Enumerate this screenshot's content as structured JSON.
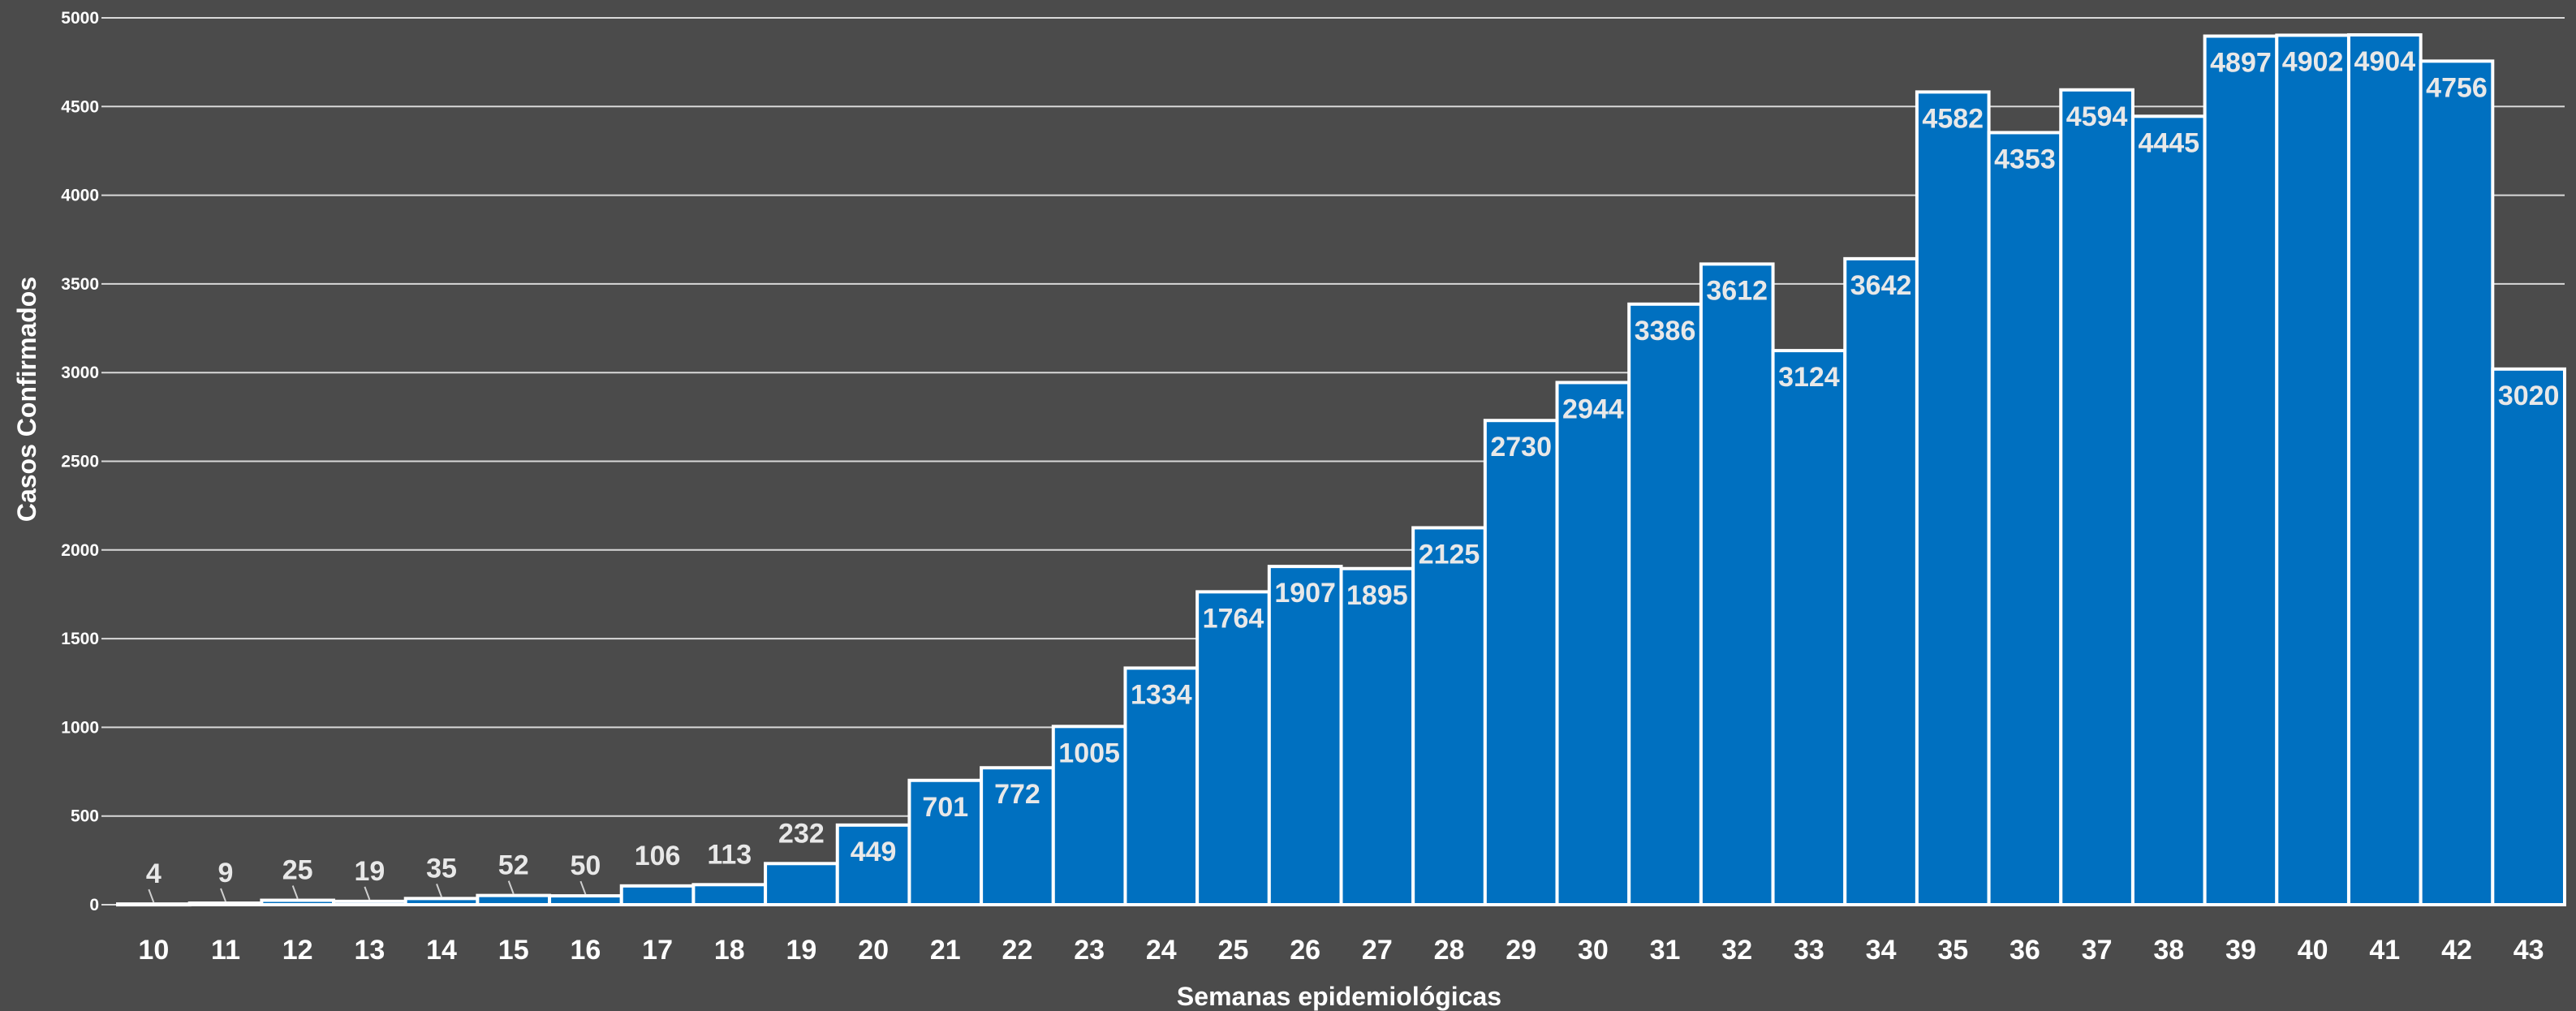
{
  "chart_data": {
    "type": "bar",
    "categories": [
      "10",
      "11",
      "12",
      "13",
      "14",
      "15",
      "16",
      "17",
      "18",
      "19",
      "20",
      "21",
      "22",
      "23",
      "24",
      "25",
      "26",
      "27",
      "28",
      "29",
      "30",
      "31",
      "32",
      "33",
      "34",
      "35",
      "36",
      "37",
      "38",
      "39",
      "40",
      "41",
      "42",
      "43"
    ],
    "values": [
      4,
      9,
      25,
      19,
      35,
      52,
      50,
      106,
      113,
      232,
      449,
      701,
      772,
      1005,
      1334,
      1764,
      1907,
      1895,
      2125,
      2730,
      2944,
      3386,
      3612,
      3124,
      3642,
      4582,
      4353,
      4594,
      4445,
      4897,
      4902,
      4904,
      4756,
      3020
    ],
    "xlabel": "Semanas epidemiológicas",
    "ylabel": "Casos Confirmados",
    "ylim": [
      0,
      5000
    ],
    "yticks": [
      0,
      500,
      1000,
      1500,
      2000,
      2500,
      3000,
      3500,
      4000,
      4500,
      5000
    ],
    "grid": true,
    "colors": {
      "bar": "#0070c0",
      "background": "#4b4b4b",
      "grid": "#d9d9d9",
      "text": "#ffffff"
    }
  }
}
